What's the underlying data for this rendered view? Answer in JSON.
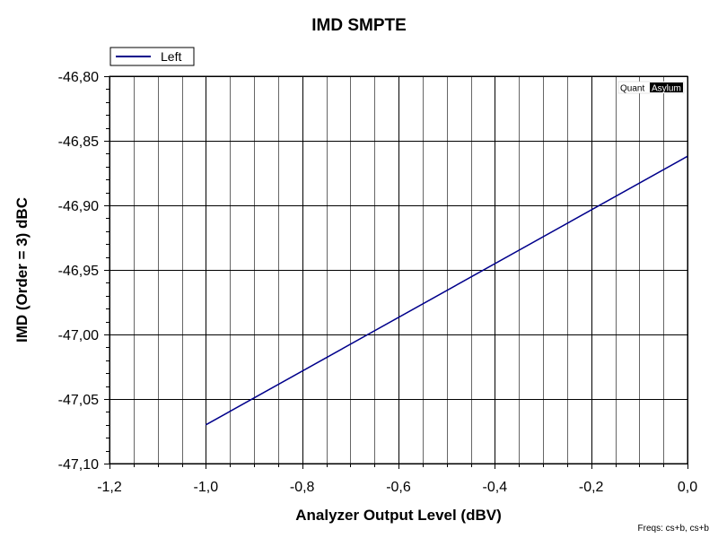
{
  "chart_data": {
    "type": "line",
    "title": "IMD SMPTE",
    "xlabel": "Analyzer Output Level (dBV)",
    "ylabel": "IMD (Order = 3) dBC",
    "xlim": [
      -1.2,
      0.0
    ],
    "ylim": [
      -47.1,
      -46.8
    ],
    "x_ticks": [
      "-1,2",
      "-1,0",
      "-0,8",
      "-0,6",
      "-0,4",
      "-0,2",
      "0,0"
    ],
    "y_ticks": [
      "-46,80",
      "-46,85",
      "-46,90",
      "-46,95",
      "-47,00",
      "-47,05",
      "-47,10"
    ],
    "grid": true,
    "legend_position": "top-left",
    "series": [
      {
        "name": "Left",
        "color": "#00008b",
        "x": [
          -1.0,
          0.0
        ],
        "y": [
          -47.07,
          -46.862
        ]
      }
    ]
  },
  "watermark": {
    "part1": "Quant",
    "part2": "Asylum"
  },
  "footer_text": "Freqs: cs+b, cs+b"
}
